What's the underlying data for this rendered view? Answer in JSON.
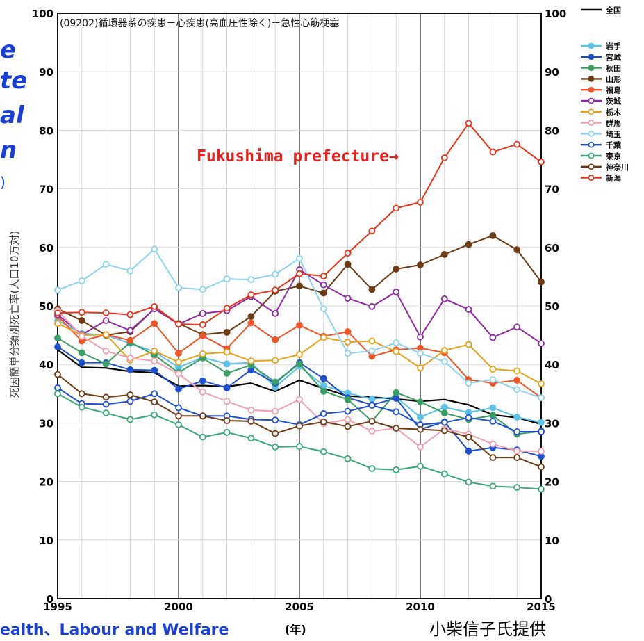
{
  "side_fragments": [
    "e",
    "te",
    "al",
    "n",
    ")"
  ],
  "footer": {
    "left": "ealth、Labour and Welfare",
    "year_unit": "(年)",
    "credit": "小柴信子氏提供"
  },
  "chart_data": {
    "type": "line",
    "title": "(09202)循環器系の疾患－心疾患(高血圧性除く)－急性心筋梗塞",
    "xlabel": "",
    "ylabel": "死因簡単分類別死亡率(人口10万対)",
    "xlim": [
      1995,
      2015
    ],
    "ylim": [
      0,
      100
    ],
    "x_ticks": [
      1995,
      2000,
      2005,
      2010,
      2015
    ],
    "y_ticks": [
      0,
      10,
      20,
      30,
      40,
      50,
      60,
      70,
      80,
      90,
      100
    ],
    "grid": true,
    "legend_position": "top-right outside",
    "annotation": "Fukushima prefecture→",
    "x": [
      1995,
      1996,
      1997,
      1998,
      1999,
      2000,
      2001,
      2002,
      2003,
      2004,
      2005,
      2006,
      2007,
      2008,
      2009,
      2010,
      2011,
      2012,
      2013,
      2014,
      2015
    ],
    "series": [
      {
        "name": "全国",
        "color": "#000000",
        "marker": "none",
        "values": [
          42.5,
          39.5,
          39.4,
          38.8,
          38.6,
          36.3,
          36.4,
          36.2,
          36.8,
          35.4,
          37.3,
          35.9,
          34.6,
          34.4,
          34.1,
          33.7,
          34.0,
          33.1,
          31.4,
          30.9,
          29.8
        ]
      },
      {
        "name": "岩手",
        "color": "#5cc2e6",
        "marker": "filled",
        "values": [
          47.5,
          45.3,
          45.0,
          43.6,
          42.2,
          39.5,
          41.2,
          40.1,
          40.3,
          36.1,
          39.7,
          36.4,
          35.1,
          34.1,
          34.4,
          31.0,
          32.7,
          31.8,
          32.6,
          31.0,
          30.1
        ]
      },
      {
        "name": "宮城",
        "color": "#1f4fd1",
        "marker": "filled",
        "values": [
          43.0,
          40.3,
          40.3,
          39.1,
          39.0,
          35.8,
          37.2,
          36.0,
          39.1,
          36.8,
          40.3,
          37.6,
          34.3,
          33.1,
          34.2,
          28.9,
          30.2,
          25.2,
          25.8,
          25.4,
          24.3
        ]
      },
      {
        "name": "秋田",
        "color": "#3a9e62",
        "marker": "filled",
        "values": [
          44.5,
          42.0,
          40.1,
          43.8,
          41.6,
          38.6,
          41.1,
          38.5,
          39.9,
          37.0,
          40.1,
          35.4,
          34.0,
          30.3,
          35.2,
          33.6,
          31.7,
          30.6,
          31.3,
          28.1,
          28.6
        ]
      },
      {
        "name": "山形",
        "color": "#6b3a12",
        "marker": "filled",
        "values": [
          49.5,
          47.5,
          45.0,
          45.6,
          49.5,
          47.0,
          45.1,
          45.5,
          48.2,
          52.5,
          53.4,
          52.2,
          57.1,
          52.8,
          56.3,
          57.0,
          58.8,
          60.5,
          62.0,
          59.6,
          54.1
        ]
      },
      {
        "name": "福島",
        "color": "#f2542a",
        "marker": "filled",
        "values": [
          48.3,
          44.0,
          45.1,
          44.1,
          47.0,
          41.9,
          44.9,
          42.7,
          47.1,
          44.2,
          46.7,
          44.8,
          45.6,
          41.4,
          42.5,
          42.8,
          42.0,
          37.4,
          36.8,
          37.3,
          34.3
        ]
      },
      {
        "name": "茨城",
        "color": "#8e2aa0",
        "marker": "open",
        "values": [
          48.5,
          45.1,
          47.5,
          45.8,
          49.5,
          46.9,
          48.7,
          49.2,
          51.6,
          48.7,
          56.2,
          53.6,
          51.3,
          49.9,
          52.4,
          44.7,
          51.2,
          49.4,
          44.6,
          46.4,
          43.6
        ]
      },
      {
        "name": "栃木",
        "color": "#e6a21c",
        "marker": "open",
        "values": [
          47.0,
          45.0,
          45.1,
          40.7,
          42.3,
          40.4,
          41.8,
          42.1,
          40.6,
          40.7,
          41.7,
          44.6,
          43.8,
          44.0,
          42.2,
          39.4,
          42.4,
          43.4,
          39.2,
          38.9,
          36.7
        ]
      },
      {
        "name": "群馬",
        "color": "#f0a0b0",
        "marker": "open",
        "values": [
          49.2,
          44.8,
          42.3,
          41.1,
          40.6,
          38.4,
          35.3,
          33.7,
          32.2,
          32.0,
          34.0,
          29.9,
          30.6,
          28.6,
          29.1,
          25.9,
          29.0,
          28.1,
          26.4,
          25.2,
          25.2
        ]
      },
      {
        "name": "埼玉",
        "color": "#8fd3ef",
        "marker": "open",
        "values": [
          52.7,
          54.3,
          57.1,
          56.0,
          59.7,
          53.1,
          52.8,
          54.6,
          54.5,
          55.4,
          58.1,
          49.5,
          41.9,
          42.3,
          43.7,
          41.9,
          40.5,
          36.8,
          37.4,
          35.7,
          34.3
        ]
      },
      {
        "name": "千葉",
        "color": "#1f4fd1",
        "marker": "open",
        "values": [
          36.0,
          33.3,
          33.2,
          33.7,
          35.0,
          32.6,
          31.2,
          31.2,
          30.6,
          30.5,
          29.7,
          31.6,
          32.0,
          33.0,
          31.9,
          29.7,
          30.1,
          30.9,
          30.3,
          28.5,
          28.5
        ]
      },
      {
        "name": "東京",
        "color": "#3aa878",
        "marker": "open",
        "values": [
          35.0,
          32.7,
          31.7,
          30.6,
          31.4,
          29.7,
          27.6,
          28.4,
          27.4,
          25.9,
          26.0,
          25.1,
          23.9,
          22.2,
          22.0,
          22.6,
          21.3,
          19.9,
          19.2,
          19.0,
          18.7
        ]
      },
      {
        "name": "神奈川",
        "color": "#6b3a12",
        "marker": "open",
        "values": [
          38.3,
          35.0,
          34.4,
          34.8,
          33.6,
          31.2,
          31.2,
          30.4,
          30.3,
          28.2,
          29.5,
          30.2,
          29.4,
          30.3,
          29.1,
          28.9,
          28.7,
          27.6,
          24.1,
          24.1,
          22.5
        ]
      },
      {
        "name": "新潟",
        "color": "#e8321c",
        "marker": "open",
        "values": [
          48.8,
          48.9,
          48.8,
          48.5,
          49.9,
          46.9,
          46.8,
          49.6,
          51.9,
          52.7,
          55.5,
          55.1,
          59.0,
          62.8,
          66.7,
          67.7,
          75.3,
          81.2,
          76.3,
          77.6,
          74.6
        ]
      }
    ]
  }
}
